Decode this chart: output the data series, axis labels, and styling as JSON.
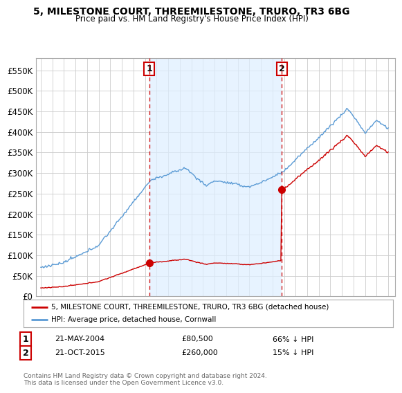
{
  "title": "5, MILESTONE COURT, THREEMILESTONE, TRURO, TR3 6BG",
  "subtitle": "Price paid vs. HM Land Registry's House Price Index (HPI)",
  "legend_label_red": "5, MILESTONE COURT, THREEMILESTONE, TRURO, TR3 6BG (detached house)",
  "legend_label_blue": "HPI: Average price, detached house, Cornwall",
  "transaction1_date": "21-MAY-2004",
  "transaction1_price": 80500,
  "transaction1_pct": "66% ↓ HPI",
  "transaction2_date": "21-OCT-2015",
  "transaction2_price": 260000,
  "transaction2_pct": "15% ↓ HPI",
  "footer": "Contains HM Land Registry data © Crown copyright and database right 2024.\nThis data is licensed under the Open Government Licence v3.0.",
  "red_color": "#cc0000",
  "blue_color": "#5b9bd5",
  "shade_color": "#ddeeff",
  "vline_color": "#cc0000",
  "background_color": "#ffffff",
  "grid_color": "#cccccc",
  "ylim": [
    0,
    580000
  ],
  "yticks": [
    0,
    50000,
    100000,
    150000,
    200000,
    250000,
    300000,
    350000,
    400000,
    450000,
    500000,
    550000
  ],
  "sale1_year": 2004.38,
  "sale2_year": 2015.8
}
